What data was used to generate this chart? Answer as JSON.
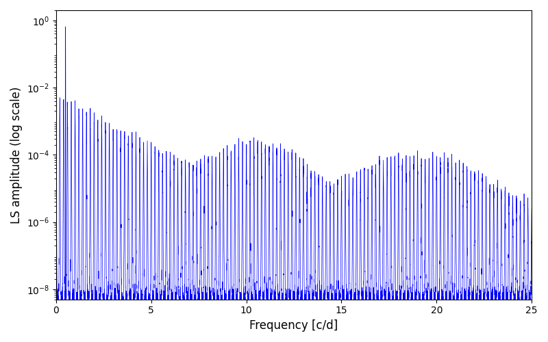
{
  "xlabel": "Frequency [c/d]",
  "ylabel": "LS amplitude (log scale)",
  "xlim": [
    0,
    25
  ],
  "ylim": [
    5e-09,
    2.0
  ],
  "line_color": "#0000FF",
  "line_width": 0.5,
  "background_color": "#ffffff",
  "figsize": [
    8.0,
    5.0
  ],
  "dpi": 100,
  "seed": 1234,
  "n_points": 10000,
  "peak_freq": 0.5,
  "peak_amplitude": 0.65
}
